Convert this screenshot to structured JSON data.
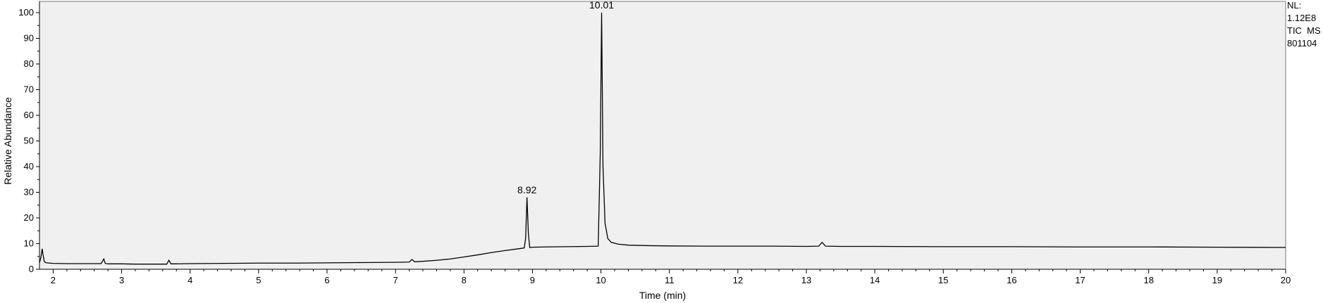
{
  "chart_data": {
    "type": "line",
    "title": "",
    "xlabel": "Time (min)",
    "ylabel": "Relative Abundance",
    "xlim": [
      1.8,
      20
    ],
    "ylim": [
      0,
      100
    ],
    "x_ticks": [
      2,
      3,
      4,
      5,
      6,
      7,
      8,
      9,
      10,
      11,
      12,
      13,
      14,
      15,
      16,
      17,
      18,
      19,
      20
    ],
    "y_ticks": [
      0,
      10,
      20,
      30,
      40,
      50,
      60,
      70,
      80,
      90,
      100
    ],
    "grid": false,
    "background": "#f0f0f0",
    "line_color": "#000000",
    "info_lines": [
      "NL:",
      "1.12E8",
      "TIC  MS",
      "801104"
    ],
    "peak_labels": [
      {
        "x": 8.92,
        "y": 28,
        "text": "8.92"
      },
      {
        "x": 10.01,
        "y": 100,
        "text": "10.01"
      }
    ],
    "series": [
      {
        "x": [
          1.8,
          1.82,
          1.84,
          1.85,
          1.87,
          1.9,
          1.95,
          2.0,
          2.2,
          2.5,
          2.7,
          2.74,
          2.76,
          2.8,
          3.0,
          3.2,
          3.5,
          3.66,
          3.69,
          3.72,
          3.8,
          4.0,
          4.5,
          5.0,
          5.5,
          6.0,
          6.5,
          7.0,
          7.2,
          7.24,
          7.28,
          7.4,
          7.6,
          7.8,
          8.0,
          8.2,
          8.4,
          8.6,
          8.8,
          8.88,
          8.9,
          8.92,
          8.94,
          8.96,
          9.0,
          9.2,
          9.5,
          9.8,
          9.96,
          9.99,
          10.01,
          10.03,
          10.06,
          10.1,
          10.15,
          10.25,
          10.4,
          10.7,
          11.0,
          11.5,
          12.0,
          12.5,
          13.0,
          13.18,
          13.23,
          13.28,
          13.5,
          14.0,
          15.0,
          16.0,
          17.0,
          18.0,
          19.0,
          20.0
        ],
        "y": [
          2.5,
          4.5,
          8.0,
          6.0,
          3.0,
          2.5,
          2.4,
          2.3,
          2.2,
          2.2,
          2.2,
          4.0,
          2.3,
          2.1,
          2.1,
          2.0,
          2.0,
          2.0,
          3.5,
          2.1,
          2.1,
          2.2,
          2.3,
          2.4,
          2.4,
          2.5,
          2.6,
          2.7,
          2.8,
          3.8,
          2.9,
          3.1,
          3.5,
          4.0,
          4.8,
          5.6,
          6.5,
          7.3,
          8.0,
          8.3,
          12.0,
          28.0,
          14.0,
          8.5,
          8.6,
          8.7,
          8.8,
          8.9,
          9.0,
          45.0,
          100.0,
          40.0,
          18.0,
          12.0,
          10.5,
          9.8,
          9.4,
          9.2,
          9.1,
          9.0,
          9.0,
          9.0,
          8.9,
          9.0,
          10.5,
          9.0,
          8.9,
          8.9,
          8.8,
          8.8,
          8.7,
          8.7,
          8.6,
          8.5
        ]
      }
    ]
  }
}
